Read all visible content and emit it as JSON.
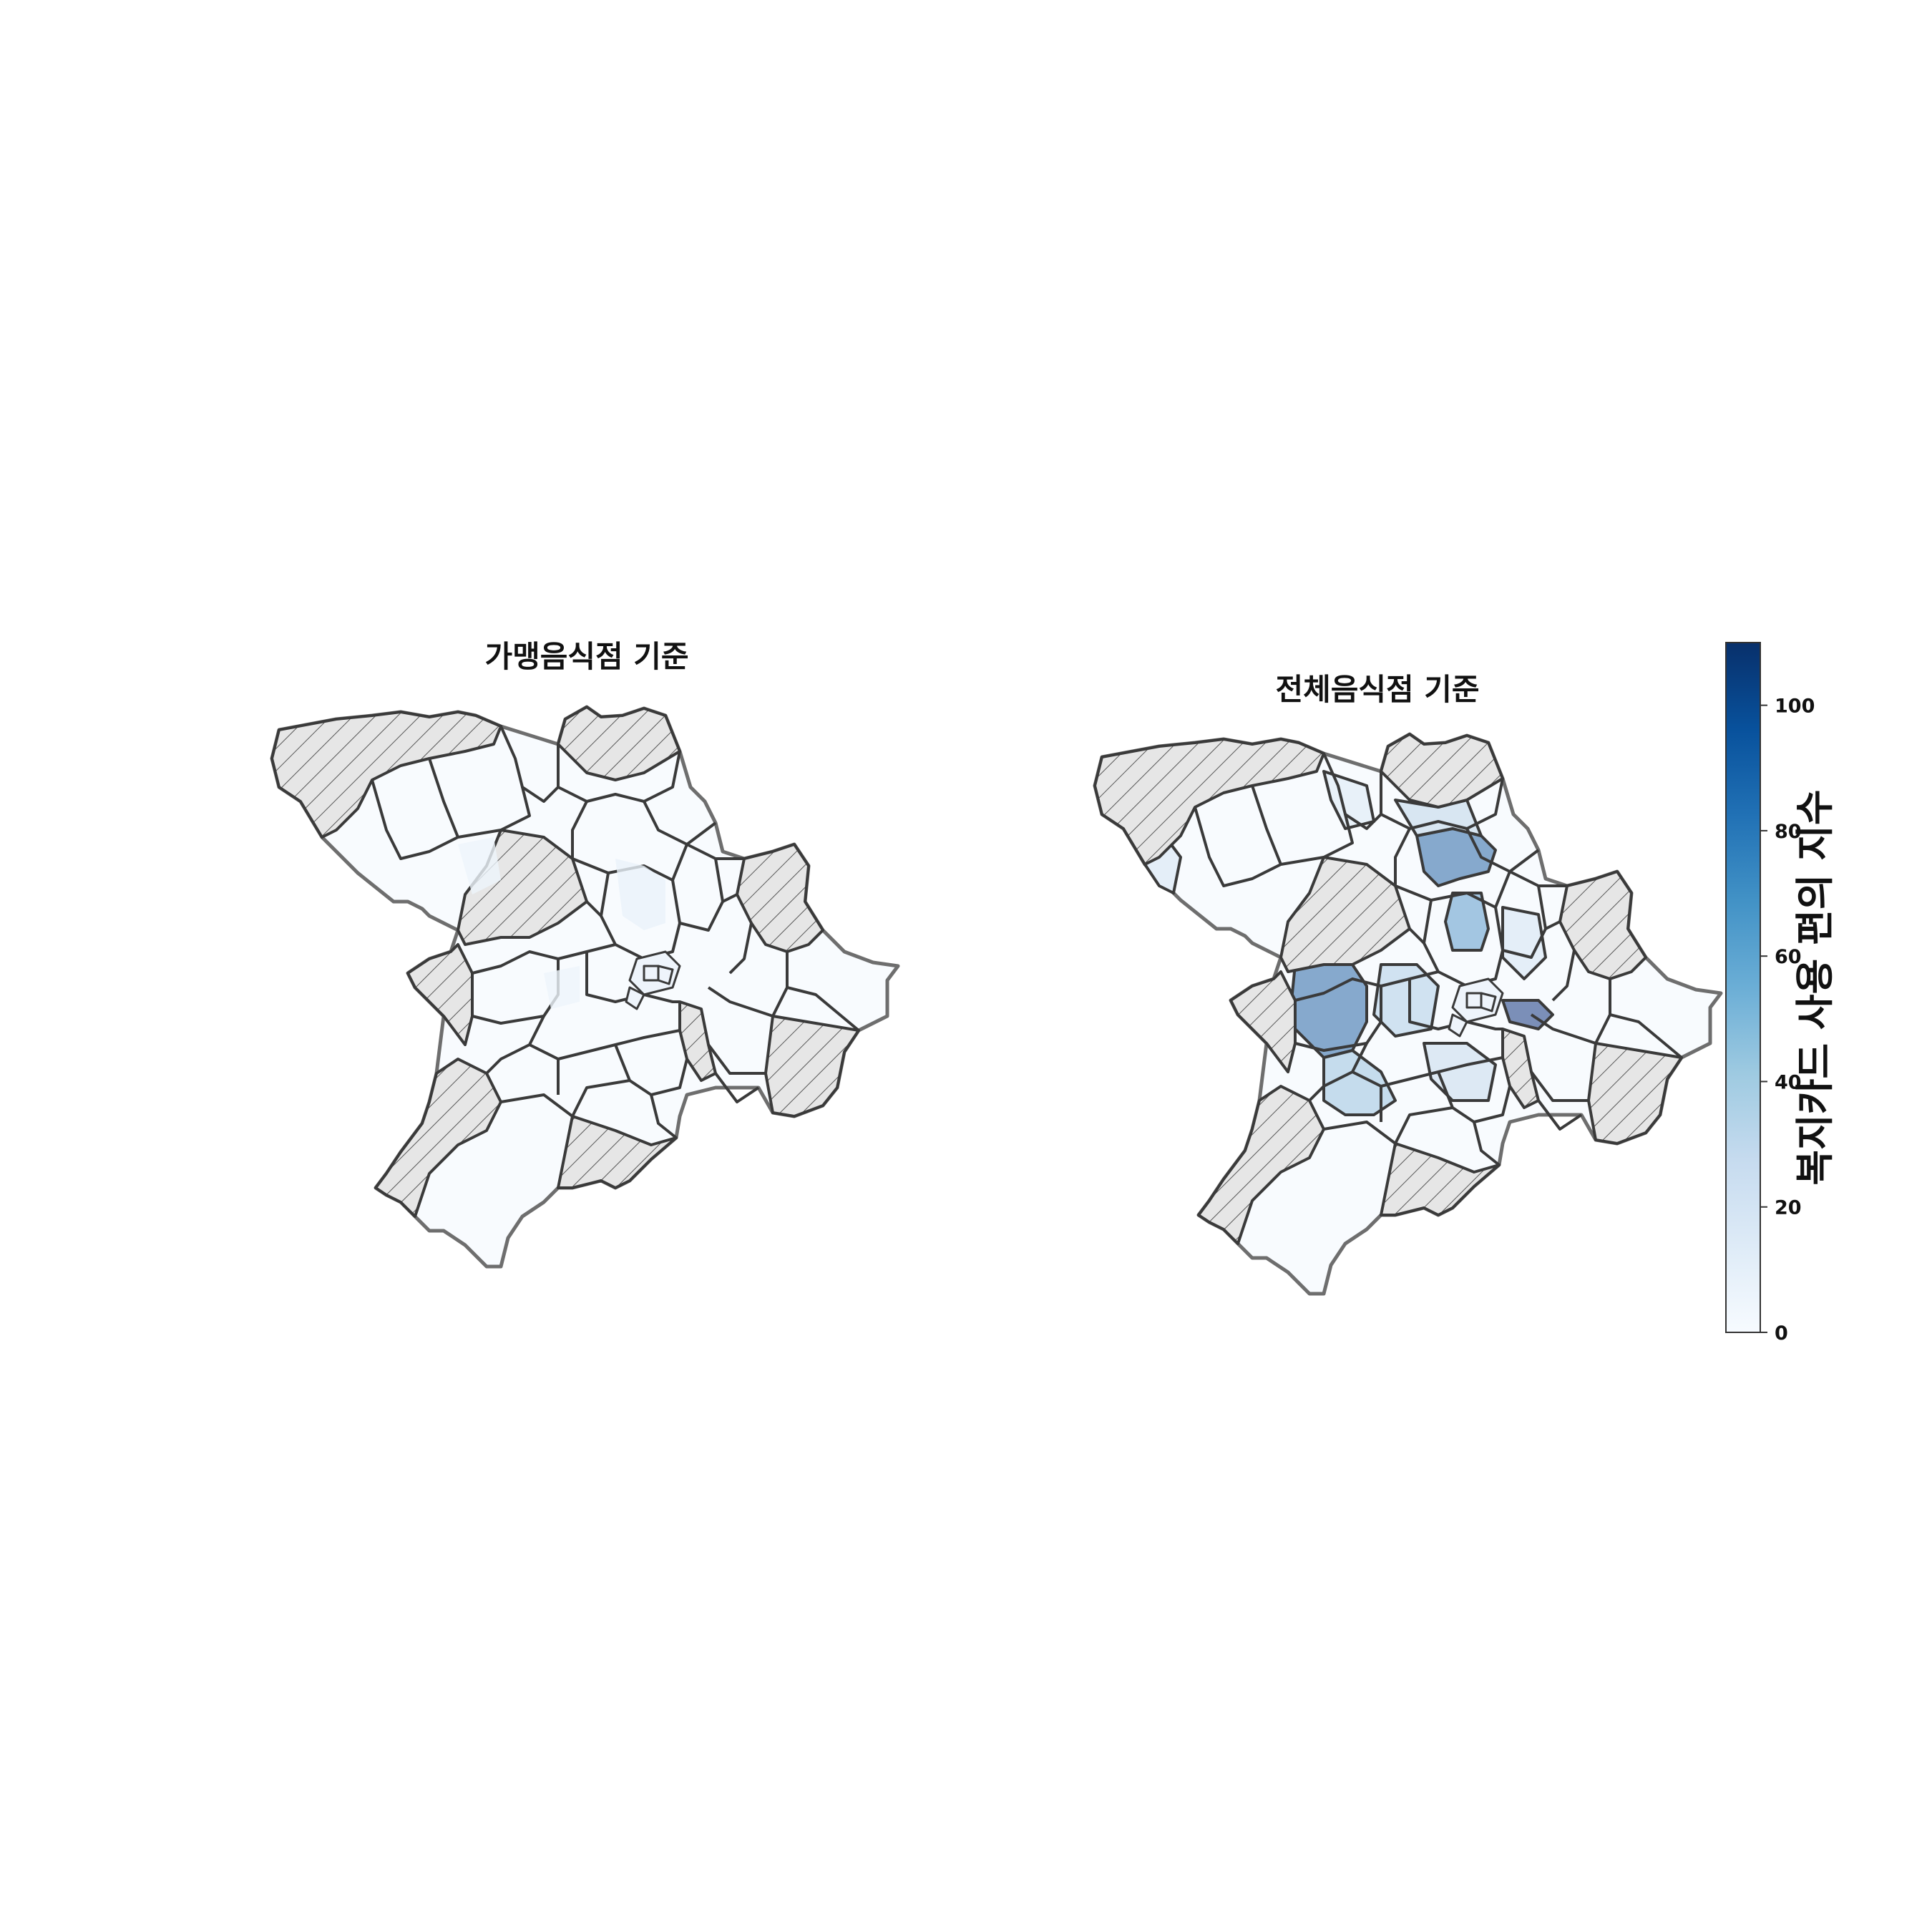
{
  "maps": [
    {
      "title": "가맹음식점 기준"
    },
    {
      "title": "전체음식점 기준"
    }
  ],
  "colorbar": {
    "label": "복지카드 사용 편의 지수",
    "ticks": [
      "0",
      "20",
      "40",
      "60",
      "80",
      "100"
    ],
    "min": 0,
    "max": 110,
    "colormap": "Blues",
    "stops": [
      "#f7fbff",
      "#deebf7",
      "#c6dbef",
      "#9ecae1",
      "#6baed6",
      "#4292c6",
      "#2171b5",
      "#08519c",
      "#08306b"
    ]
  },
  "legend_note": {
    "no_data_pattern": "hatched grey"
  }
}
